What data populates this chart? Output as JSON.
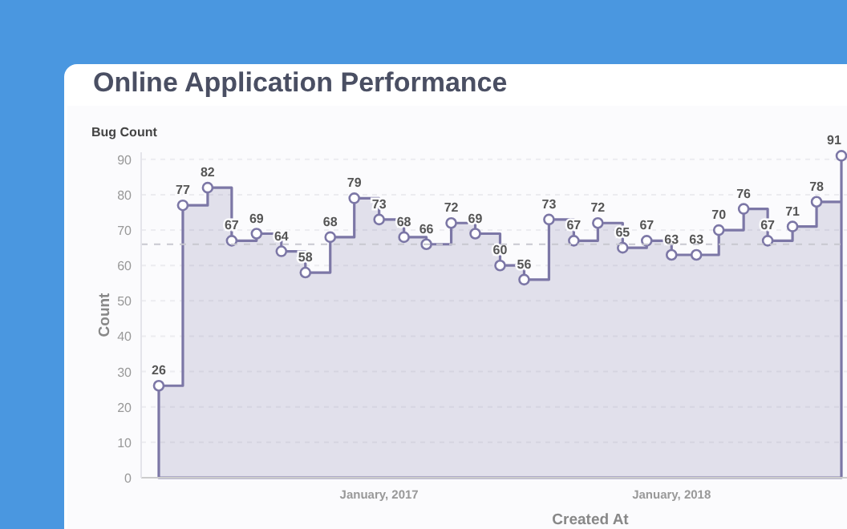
{
  "chart_data": {
    "type": "step",
    "title": "Online Application Performance",
    "subtitle": "Bug Count",
    "xlabel": "Created At",
    "ylabel": "Count",
    "x": [
      "2016-04",
      "2016-05",
      "2016-06",
      "2016-07",
      "2016-08",
      "2016-09",
      "2016-10",
      "2016-11",
      "2016-12",
      "2017-01",
      "2017-02",
      "2017-03",
      "2017-04",
      "2017-05",
      "2017-06",
      "2017-07",
      "2017-08",
      "2017-09",
      "2017-10",
      "2017-11",
      "2017-12",
      "2018-01",
      "2018-02",
      "2018-03",
      "2018-04",
      "2018-05",
      "2018-06",
      "2018-07",
      "2018-08"
    ],
    "series": [
      {
        "type": "area",
        "color": "#7c77a6",
        "values": [
          26,
          77,
          82,
          67,
          69,
          64,
          58,
          68,
          79,
          73,
          68,
          66,
          72,
          69,
          60,
          56,
          73,
          67,
          72,
          65,
          67,
          63,
          63,
          70,
          76,
          67,
          71,
          78,
          91
        ]
      }
    ],
    "xlim": [
      "2016-03-10",
      "2018-08-08"
    ],
    "xticks": [
      {
        "value": "2017-01",
        "label": "January, 2017"
      },
      {
        "value": "2018-01",
        "label": "January, 2018"
      }
    ],
    "ylim": [
      0,
      92
    ],
    "yticks": [
      0,
      10,
      20,
      30,
      40,
      50,
      60,
      70,
      80,
      90
    ],
    "ref_lines": [
      {
        "axis": "y",
        "value": 66,
        "line_style": "dashed",
        "color": "#c8c8d0"
      }
    ],
    "grid": "y",
    "marker": "circle",
    "data_labels": true
  }
}
